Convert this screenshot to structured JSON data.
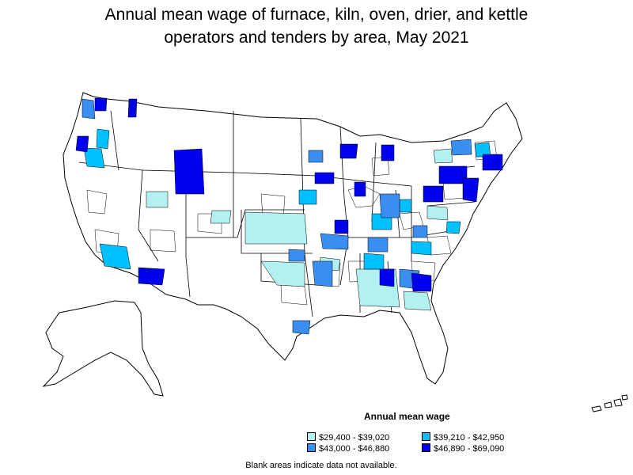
{
  "title_line1": "Annual mean wage of furnace, kiln, oven, drier, and kettle",
  "title_line2": "operators and tenders by area, May 2021",
  "legend": {
    "title": "Annual mean wage",
    "items": [
      {
        "label": "$29,400 - $39,020",
        "color": "#b3f0f0"
      },
      {
        "label": "$39,210 - $42,950",
        "color": "#00c0ff"
      },
      {
        "label": "$43,000 - $46,880",
        "color": "#3a8ef0"
      },
      {
        "label": "$46,890 - $69,090",
        "color": "#0000ee"
      }
    ]
  },
  "footnote": "Blank areas indicate data not available."
}
